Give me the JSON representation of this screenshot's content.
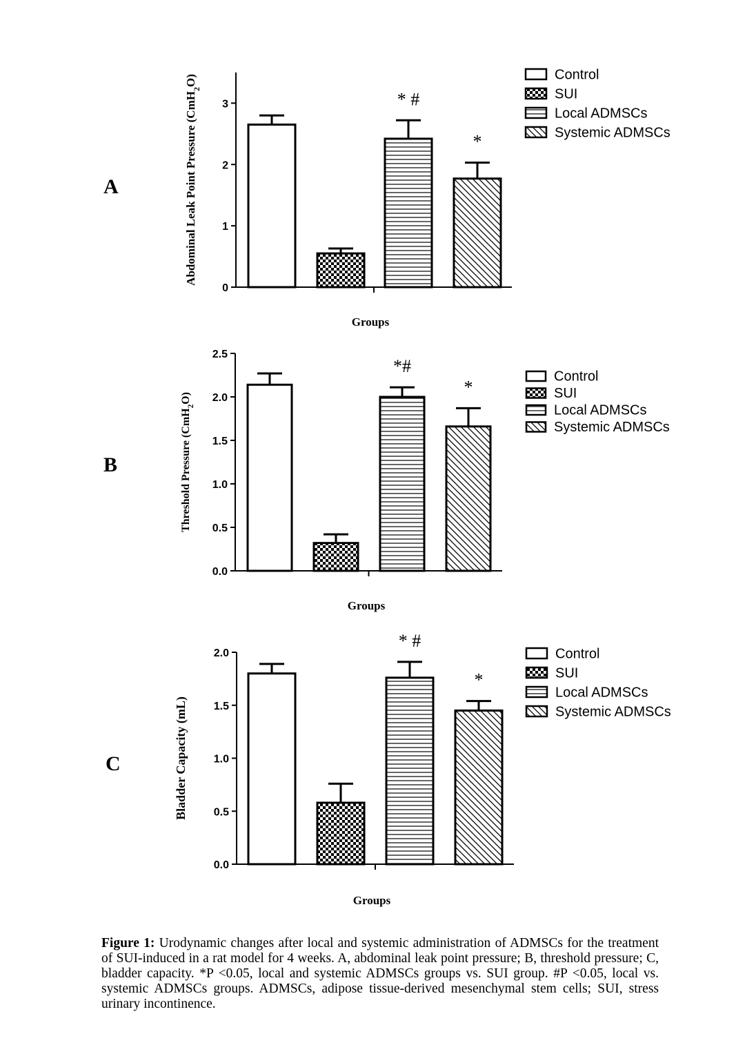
{
  "chart_data": [
    {
      "panel": "A",
      "type": "bar",
      "categories": [
        "Control",
        "SUI",
        "Local ADMSCs",
        "Systemic ADMSCs"
      ],
      "values": [
        2.65,
        0.55,
        2.42,
        1.77
      ],
      "errors": [
        0.15,
        0.08,
        0.3,
        0.26
      ],
      "annotations": [
        "",
        "",
        "* #",
        "*"
      ],
      "xlabel": "Groups",
      "ylabel": "Abdominal Leak Point Pressure (CmH",
      "ylabel_sub": "2",
      "ylabel_end": "O)",
      "ylim": [
        0,
        3.5
      ],
      "yticks": [
        0,
        1,
        2,
        3
      ],
      "ytick_labels": [
        "0",
        "1",
        "2",
        "3"
      ],
      "legend": [
        "Control",
        "SUI",
        "Local ADMSCs",
        "Systemic ADMSCs"
      ],
      "legend_position": "top-right",
      "grid": false
    },
    {
      "panel": "B",
      "type": "bar",
      "categories": [
        "Control",
        "SUI",
        "Local ADMSCs",
        "Systemic ADMSCs"
      ],
      "values": [
        2.14,
        0.32,
        2.0,
        1.66
      ],
      "errors": [
        0.13,
        0.1,
        0.11,
        0.21
      ],
      "annotations": [
        "",
        "",
        "*#",
        "*"
      ],
      "xlabel": "Groups",
      "ylabel": "Threshold Pressure (CmH",
      "ylabel_sub": "2",
      "ylabel_end": "O)",
      "ylim": [
        0,
        2.5
      ],
      "yticks": [
        0,
        0.5,
        1.0,
        1.5,
        2.0,
        2.5
      ],
      "ytick_labels": [
        "0.0",
        "0.5",
        "1.0",
        "1.5",
        "2.0",
        "2.5"
      ],
      "legend": [
        "Control",
        "SUI",
        "Local ADMSCs",
        "Systemic ADMSCs"
      ],
      "legend_position": "top-right",
      "grid": false
    },
    {
      "panel": "C",
      "type": "bar",
      "categories": [
        "Control",
        "SUI",
        "Local ADMSCs",
        "Systemic ADMSCs"
      ],
      "values": [
        1.8,
        0.58,
        1.76,
        1.45
      ],
      "errors": [
        0.09,
        0.18,
        0.15,
        0.09
      ],
      "annotations": [
        "",
        "",
        "* #",
        "*"
      ],
      "xlabel": "Groups",
      "ylabel": "Bladder Capacity (mL)",
      "ylabel_sub": "",
      "ylabel_end": "",
      "ylim": [
        0,
        2.0
      ],
      "yticks": [
        0,
        0.5,
        1.0,
        1.5,
        2.0
      ],
      "ytick_labels": [
        "0.0",
        "0.5",
        "1.0",
        "1.5",
        "2.0"
      ],
      "legend": [
        "Control",
        "SUI",
        "Local ADMSCs",
        "Systemic ADMSCs"
      ],
      "legend_position": "top-right",
      "grid": false
    }
  ],
  "caption": {
    "label": "Figure 1:",
    "text": " Urodynamic changes after local and systemic administration of ADMSCs for the treatment of SUI-induced in a rat model for 4 weeks. A, abdominal leak point pressure; B, threshold pressure; C, bladder capacity. *P <0.05, local and systemic ADMSCs groups vs. SUI group. #P <0.05, local vs. systemic ADMSCs groups. ADMSCs, adipose tissue-derived mesenchymal stem cells; SUI, stress urinary incontinence."
  },
  "patterns": [
    "open",
    "checker",
    "horizontal-lines",
    "diagonal-lines"
  ]
}
